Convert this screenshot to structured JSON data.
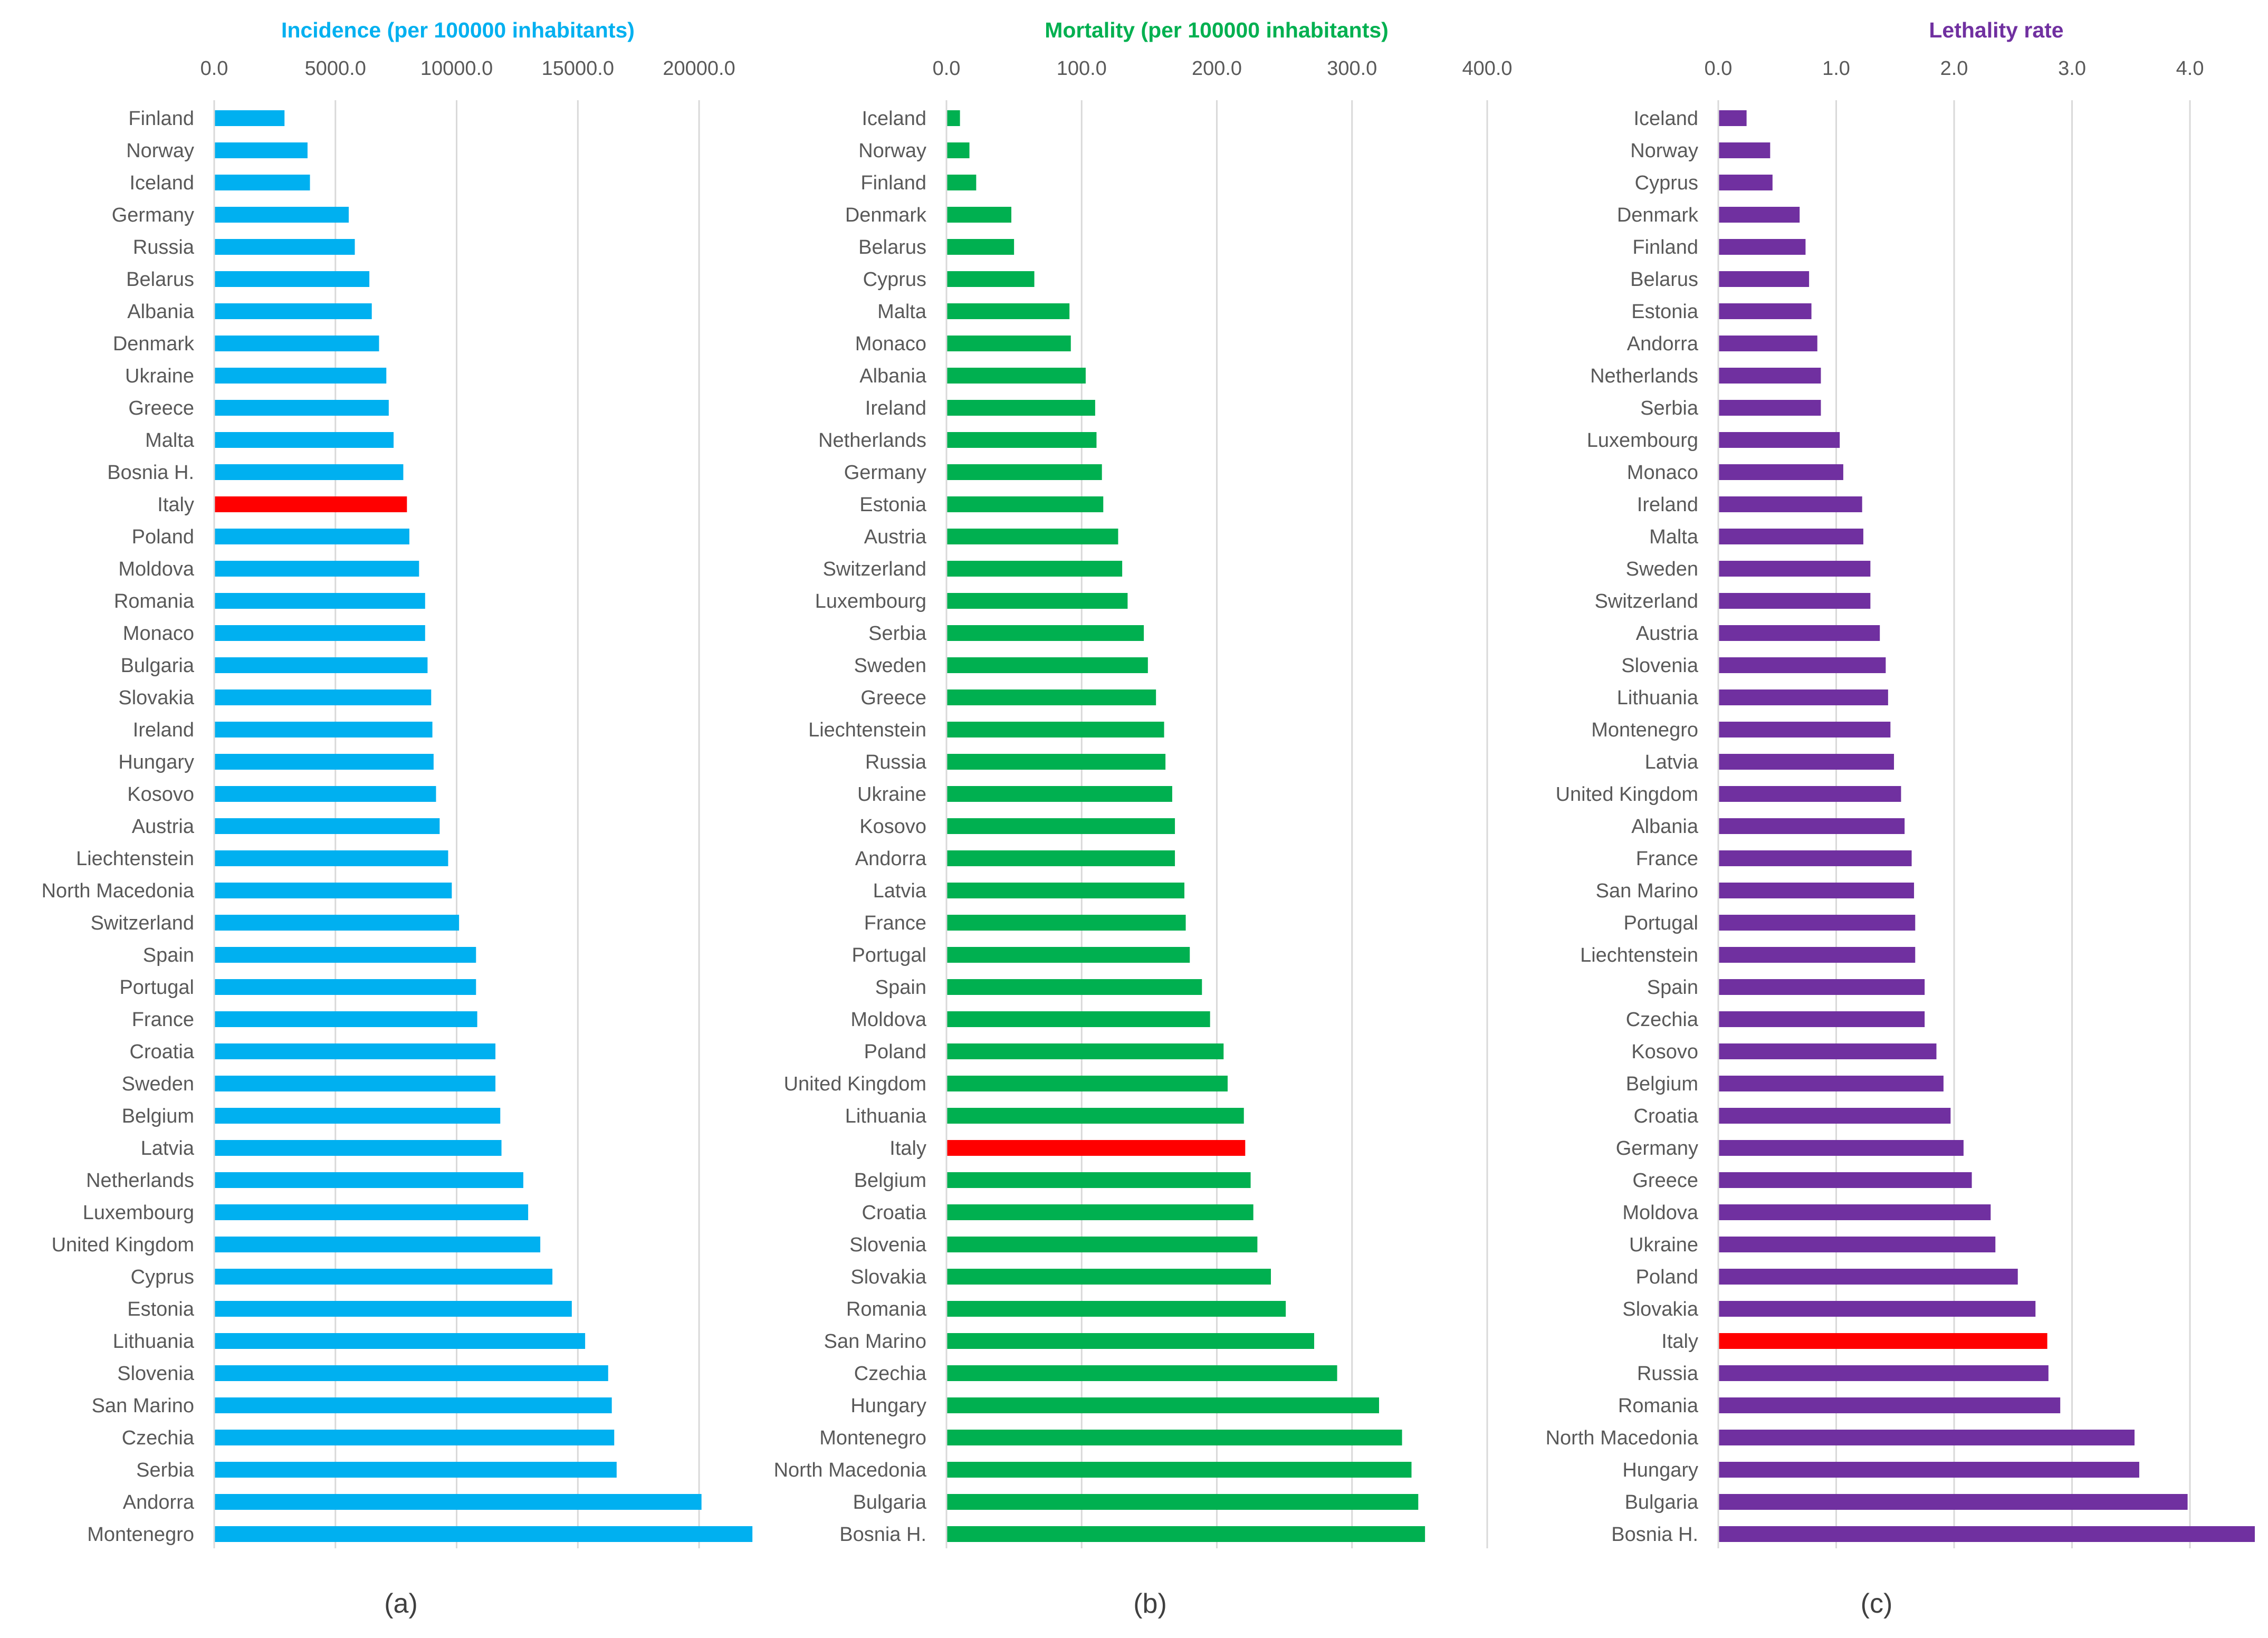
{
  "chart_data": [
    {
      "type": "bar",
      "orientation": "horizontal",
      "panel_label": "(a)",
      "title": "Incidence (per 100000 inhabitants)",
      "title_color": "#00b0f0",
      "bar_color": "#00b0f0",
      "highlight_category": "Italy",
      "highlight_color": "#ff0000",
      "xlim": [
        0,
        22000
      ],
      "ticks": [
        0,
        5000,
        10000,
        15000,
        20000
      ],
      "tick_labels": [
        "0.0",
        "5000.0",
        "10000.0",
        "15000.0",
        "20000.0"
      ],
      "grid": true,
      "categories": [
        "Finland",
        "Norway",
        "Iceland",
        "Germany",
        "Russia",
        "Belarus",
        "Albania",
        "Denmark",
        "Ukraine",
        "Greece",
        "Malta",
        "Bosnia H.",
        "Italy",
        "Poland",
        "Moldova",
        "Romania",
        "Monaco",
        "Bulgaria",
        "Slovakia",
        "Ireland",
        "Hungary",
        "Kosovo",
        "Austria",
        "Liechtenstein",
        "North Macedonia",
        "Switzerland",
        "Spain",
        "Portugal",
        "France",
        "Croatia",
        "Sweden",
        "Belgium",
        "Latvia",
        "Netherlands",
        "Luxembourg",
        "United Kingdom",
        "Cyprus",
        "Estonia",
        "Lithuania",
        "Slovenia",
        "San Marino",
        "Czechia",
        "Serbia",
        "Andorra",
        "Montenegro"
      ],
      "values": [
        2900,
        3850,
        3950,
        5550,
        5800,
        6400,
        6500,
        6800,
        7100,
        7200,
        7400,
        7800,
        7950,
        8050,
        8450,
        8700,
        8700,
        8800,
        8950,
        9000,
        9050,
        9150,
        9300,
        9650,
        9800,
        10100,
        10800,
        10800,
        10850,
        11600,
        11600,
        11800,
        11850,
        12750,
        12950,
        13450,
        13950,
        14750,
        15300,
        16250,
        16400,
        16500,
        16600,
        20100,
        22200
      ]
    },
    {
      "type": "bar",
      "orientation": "horizontal",
      "panel_label": "(b)",
      "title": "Mortality (per 100000 inhabitants)",
      "title_color": "#00b050",
      "bar_color": "#00b050",
      "highlight_category": "Italy",
      "highlight_color": "#ff0000",
      "xlim": [
        0,
        400
      ],
      "ticks": [
        0,
        100,
        200,
        300,
        400
      ],
      "tick_labels": [
        "0.0",
        "100.0",
        "200.0",
        "300.0",
        "400.0"
      ],
      "grid": true,
      "categories": [
        "Iceland",
        "Norway",
        "Finland",
        "Denmark",
        "Belarus",
        "Cyprus",
        "Malta",
        "Monaco",
        "Albania",
        "Ireland",
        "Netherlands",
        "Germany",
        "Estonia",
        "Austria",
        "Switzerland",
        "Luxembourg",
        "Serbia",
        "Sweden",
        "Greece",
        "Liechtenstein",
        "Russia",
        "Ukraine",
        "Kosovo",
        "Andorra",
        "Latvia",
        "France",
        "Portugal",
        "Spain",
        "Moldova",
        "Poland",
        "United Kingdom",
        "Lithuania",
        "Italy",
        "Belgium",
        "Croatia",
        "Slovenia",
        "Slovakia",
        "Romania",
        "San Marino",
        "Czechia",
        "Hungary",
        "Montenegro",
        "North Macedonia",
        "Bulgaria",
        "Bosnia H."
      ],
      "values": [
        10,
        17,
        22,
        48,
        50,
        65,
        91,
        92,
        103,
        110,
        111,
        115,
        116,
        127,
        130,
        134,
        146,
        149,
        155,
        161,
        162,
        167,
        169,
        169,
        176,
        177,
        180,
        189,
        195,
        205,
        208,
        220,
        221,
        225,
        227,
        230,
        240,
        251,
        272,
        289,
        320,
        337,
        344,
        349,
        354
      ]
    },
    {
      "type": "bar",
      "orientation": "horizontal",
      "panel_label": "(c)",
      "title": "Lethality rate",
      "title_color": "#7030a0",
      "bar_color": "#7030a0",
      "highlight_category": "Italy",
      "highlight_color": "#ff0000",
      "xlim": [
        0,
        4.55
      ],
      "ticks": [
        0,
        1,
        2,
        3,
        4
      ],
      "tick_labels": [
        "0.0",
        "1.0",
        "2.0",
        "3.0",
        "4.0"
      ],
      "grid": true,
      "categories": [
        "Iceland",
        "Norway",
        "Cyprus",
        "Denmark",
        "Finland",
        "Belarus",
        "Estonia",
        "Andorra",
        "Netherlands",
        "Serbia",
        "Luxembourg",
        "Monaco",
        "Ireland",
        "Malta",
        "Sweden",
        "Switzerland",
        "Austria",
        "Slovenia",
        "Lithuania",
        "Montenegro",
        "Latvia",
        "United Kingdom",
        "Albania",
        "France",
        "San Marino",
        "Portugal",
        "Liechtenstein",
        "Spain",
        "Czechia",
        "Kosovo",
        "Belgium",
        "Croatia",
        "Germany",
        "Greece",
        "Moldova",
        "Ukraine",
        "Poland",
        "Slovakia",
        "Italy",
        "Russia",
        "Romania",
        "North Macedonia",
        "Hungary",
        "Bulgaria",
        "Bosnia H."
      ],
      "values": [
        0.24,
        0.44,
        0.46,
        0.69,
        0.74,
        0.77,
        0.79,
        0.84,
        0.87,
        0.87,
        1.03,
        1.06,
        1.22,
        1.23,
        1.29,
        1.29,
        1.37,
        1.42,
        1.44,
        1.46,
        1.49,
        1.55,
        1.58,
        1.64,
        1.66,
        1.67,
        1.67,
        1.75,
        1.75,
        1.85,
        1.91,
        1.97,
        2.08,
        2.15,
        2.31,
        2.35,
        2.54,
        2.69,
        2.79,
        2.8,
        2.9,
        3.53,
        3.57,
        3.98,
        4.55
      ]
    }
  ]
}
